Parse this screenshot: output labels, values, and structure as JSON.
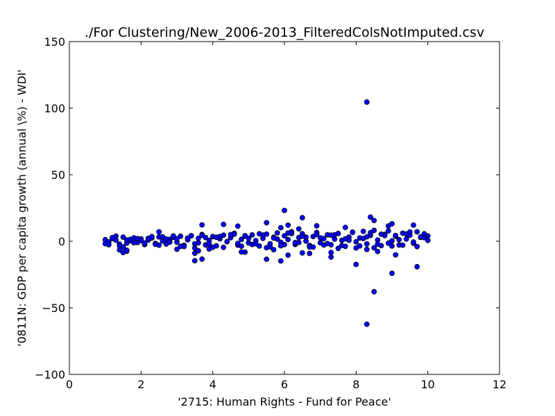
{
  "chart_data": {
    "type": "scatter",
    "title": "./For Clustering/New_2006-2013_FilteredColsNotImputed.csv",
    "xlabel": "'2715: Human Rights - Fund for Peace'",
    "ylabel": "'0811N: GDP per capita growth  (annual \\%) - WDI'",
    "xlim": [
      0,
      12
    ],
    "ylim": [
      -100,
      150
    ],
    "xticks": [
      0,
      2,
      4,
      6,
      8,
      10,
      12
    ],
    "yticks": [
      -100,
      -50,
      0,
      50,
      100,
      150
    ],
    "grid": false,
    "marker_color": "#0000ff",
    "marker_edge": "#000000",
    "series": [
      {
        "x": [
          1.0,
          1.1,
          1.2,
          1.3,
          1.4,
          1.5,
          1.6,
          1.7,
          1.8,
          1.9,
          2.0,
          2.1,
          2.2,
          2.3,
          2.4,
          2.5,
          2.6,
          2.7,
          2.8,
          2.9,
          3.0,
          3.1,
          3.2,
          3.3,
          3.4,
          3.5,
          3.6,
          3.7,
          3.8,
          3.9,
          4.0,
          4.1,
          4.2,
          4.3,
          4.4,
          4.5,
          4.6,
          4.7,
          4.8,
          4.9,
          5.0,
          5.1,
          5.2,
          5.3,
          5.4,
          5.5,
          5.6,
          5.7,
          5.8,
          5.9,
          6.0,
          6.1,
          6.2,
          6.3,
          6.4,
          6.5,
          6.6,
          6.7,
          6.8,
          6.9,
          7.0,
          7.1,
          7.2,
          7.3,
          7.4,
          7.5,
          7.6,
          7.7,
          7.8,
          7.9,
          8.0,
          8.1,
          8.2,
          8.3,
          8.4,
          8.5,
          8.6,
          8.7,
          8.8,
          8.9,
          9.0,
          9.1,
          9.2,
          9.3,
          9.4,
          9.5,
          9.6,
          9.7,
          9.8,
          9.9,
          10.0,
          1.0,
          1.2,
          1.4,
          1.6,
          1.8,
          2.0,
          2.2,
          2.4,
          2.6,
          2.8,
          3.0,
          3.2,
          3.4,
          3.6,
          3.8,
          4.0,
          4.2,
          4.4,
          4.6,
          4.8,
          5.0,
          5.2,
          5.4,
          5.6,
          5.8,
          6.0,
          6.2,
          6.4,
          6.6,
          6.8,
          7.0,
          7.2,
          7.4,
          7.6,
          7.8,
          8.0,
          8.2,
          8.4,
          8.6,
          8.8,
          9.0,
          9.2,
          9.4,
          9.6,
          9.8,
          10.0,
          1.1,
          1.3,
          1.5,
          1.7,
          1.9,
          2.1,
          2.3,
          2.5,
          2.7,
          2.9,
          3.1,
          3.3,
          3.5,
          3.7,
          3.9,
          4.1,
          4.3,
          4.5,
          4.7,
          4.9,
          5.1,
          5.3,
          5.5,
          5.7,
          5.9,
          6.1,
          6.3,
          6.5,
          6.7,
          6.9,
          7.1,
          7.3,
          7.5,
          7.7,
          7.9,
          8.1,
          8.3,
          8.5,
          8.7,
          8.9,
          9.1,
          9.3,
          9.5,
          9.7,
          9.9,
          1.4,
          1.6,
          2.5,
          3.0,
          3.5,
          3.6,
          3.7,
          3.9,
          4.3,
          4.7,
          4.9,
          5.5,
          5.7,
          5.9,
          6.0,
          6.1,
          6.4,
          6.5,
          6.7,
          6.9,
          7.3,
          7.7,
          8.3,
          8.4,
          8.5,
          8.6,
          8.9,
          9.0,
          9.6,
          1.5,
          1.6,
          3.5,
          3.7,
          4.8,
          5.5,
          5.9,
          6.1,
          6.5,
          7.3,
          8.0,
          8.3,
          8.5,
          9.0,
          9.7,
          9.1
        ],
        "y": [
          1.2,
          -0.5,
          2.1,
          0.8,
          -2.2,
          3.1,
          -1.4,
          0.4,
          2.6,
          -0.9,
          1.8,
          -2.5,
          0.9,
          2.4,
          -1.6,
          3.3,
          0.2,
          -2.1,
          1.5,
          2.9,
          -0.7,
          3.8,
          -3.0,
          1.1,
          4.2,
          -1.9,
          2.3,
          5.1,
          -2.7,
          0.6,
          3.5,
          -3.4,
          1.9,
          4.6,
          -0.3,
          2.7,
          6.0,
          -2.9,
          1.4,
          3.9,
          -1.2,
          4.8,
          0.5,
          -3.6,
          2.2,
          5.4,
          -1.8,
          3.0,
          6.3,
          -0.8,
          4.1,
          1.3,
          7.2,
          -2.4,
          2.8,
          5.7,
          0.1,
          -3.1,
          3.6,
          6.6,
          -1.1,
          2.0,
          4.9,
          -2.6,
          1.6,
          5.9,
          0.7,
          -3.8,
          3.2,
          6.9,
          -0.4,
          2.5,
          7.5,
          -2.0,
          4.4,
          8.2,
          1.0,
          -3.3,
          5.2,
          7.8,
          0.3,
          3.7,
          -2.8,
          6.1,
          1.7,
          4.5,
          -1.5,
          7.1,
          2.9,
          5.6,
          4.0,
          -1.8,
          2.7,
          -3.5,
          1.0,
          -1.1,
          0.5,
          2.2,
          -2.3,
          3.4,
          -0.6,
          1.9,
          -3.9,
          4.1,
          -1.2,
          2.8,
          -4.5,
          3.6,
          -0.2,
          5.3,
          -3.7,
          2.3,
          -1.9,
          4.7,
          -4.1,
          1.6,
          -2.5,
          5.8,
          -0.9,
          3.1,
          -4.4,
          2.6,
          -1.7,
          4.9,
          -3.2,
          0.8,
          -5.0,
          2.1,
          6.4,
          -2.2,
          4.3,
          -3.6,
          1.2,
          5.5,
          -0.5,
          3.3,
          0.6,
          -2.6,
          3.9,
          -4.2,
          1.4,
          2.0,
          -1.3,
          3.5,
          -2.9,
          1.7,
          4.0,
          -3.8,
          2.4,
          -5.1,
          4.5,
          -2.0,
          3.0,
          -4.6,
          5.0,
          -1.6,
          4.2,
          -2.4,
          5.6,
          -4.8,
          2.5,
          -3.4,
          6.2,
          -1.0,
          3.8,
          -4.3,
          5.1,
          -2.8,
          4.6,
          -5.3,
          1.8,
          6.7,
          -3.5,
          3.4,
          -4.9,
          5.3,
          -1.4,
          4.4,
          -2.9,
          7.0,
          -4.0,
          2.7,
          -6.5,
          -7.4,
          7.1,
          -6.0,
          -9.0,
          -7.2,
          12.3,
          -5.8,
          12.7,
          11.4,
          -8.1,
          13.9,
          -6.3,
          10.2,
          23.2,
          12.1,
          9.3,
          17.7,
          -9.1,
          11.6,
          -8.4,
          10.4,
          -6.1,
          18.2,
          15.6,
          -7.6,
          11.5,
          13.1,
          12.2,
          -8.5,
          -6.7,
          -14.6,
          -13.4,
          -8.0,
          -13.5,
          -14.8,
          -10.4,
          -8.7,
          -11.9,
          -17.4,
          104.6,
          -37.9,
          -24.0,
          -19.1,
          -10.2
        ],
        "extra": [
          {
            "x": 8.3,
            "y": -62.3
          }
        ]
      }
    ]
  }
}
